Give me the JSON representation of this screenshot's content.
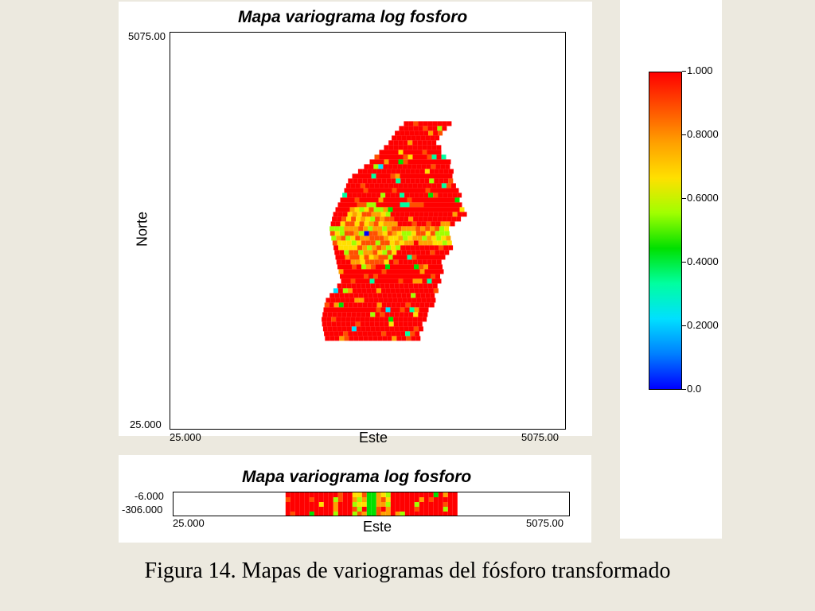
{
  "chart_data": [
    {
      "type": "heatmap",
      "title": "Mapa variograma log fosforo",
      "xlabel": "Este",
      "ylabel": "Norte",
      "xlim": [
        25.0,
        5075.0
      ],
      "ylim": [
        25.0,
        5075.0
      ],
      "xticks": [
        "25.000",
        "5075.00"
      ],
      "yticks": [
        "25.000",
        "5075.00"
      ],
      "background": "#ffffff",
      "dominant_value": 1.0,
      "rows": [
        {
          "y": 3950,
          "x": [
            3000,
            3550
          ]
        },
        {
          "y": 3850,
          "x": [
            2900,
            3450
          ]
        },
        {
          "y": 3700,
          "x": [
            2800,
            3400
          ]
        },
        {
          "y": 3450,
          "x": [
            2550,
            3550
          ]
        },
        {
          "y": 3250,
          "x": [
            2300,
            3600
          ]
        },
        {
          "y": 3000,
          "x": [
            2200,
            3700
          ]
        },
        {
          "y": 2800,
          "x": [
            2100,
            3750
          ]
        },
        {
          "y": 2600,
          "x": [
            2050,
            3550
          ]
        },
        {
          "y": 2400,
          "x": [
            2100,
            3600
          ]
        },
        {
          "y": 2150,
          "x": [
            2150,
            3450
          ]
        },
        {
          "y": 1950,
          "x": [
            2200,
            3450
          ]
        },
        {
          "y": 1700,
          "x": [
            2000,
            3350
          ]
        },
        {
          "y": 1450,
          "x": [
            1950,
            3250
          ]
        },
        {
          "y": 1200,
          "x": [
            2000,
            3150
          ]
        }
      ]
    },
    {
      "type": "heatmap",
      "title": "Mapa variograma log fosforo",
      "xlabel": "Este",
      "xlim": [
        25.0,
        5075.0
      ],
      "ylim": [
        -306.0,
        -6.0
      ],
      "xticks": [
        "25.000",
        "5075.00"
      ],
      "yticks": [
        "-6.000",
        "-306.000"
      ],
      "x_extent": [
        1450,
        3600
      ]
    }
  ],
  "colorbar": {
    "min": 0.0,
    "max": 1.0,
    "ticks": [
      "1.000",
      "0.8000",
      "0.6000",
      "0.4000",
      "0.2000",
      "0.0"
    ],
    "colors": [
      "#ff0000",
      "#ff5000",
      "#ffa000",
      "#ffe000",
      "#a0ff00",
      "#00e000",
      "#00ffa0",
      "#00e0ff",
      "#0080ff",
      "#0000ff"
    ]
  },
  "caption": "Figura 14. Mapas de variogramas del fósforo transformado"
}
